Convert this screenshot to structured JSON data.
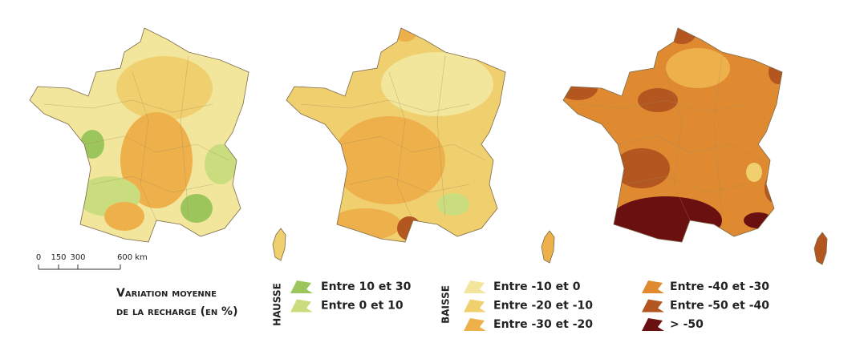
{
  "scale_bar": {
    "labels": [
      "0",
      "150",
      "300",
      "600 km"
    ]
  },
  "legend": {
    "title": [
      "Variation moyenne",
      "de la recharge (en %)"
    ],
    "groups": [
      {
        "label": "Hausse",
        "items": [
          {
            "label": "Entre 10 et 30",
            "color": "#9cc65b"
          },
          {
            "label": "Entre 0 et 10",
            "color": "#cadd7e"
          }
        ]
      },
      {
        "label": "Baisse",
        "items": [
          {
            "label": "Entre -10 et 0",
            "color": "#f2e69c"
          },
          {
            "label": "Entre -20 et -10",
            "color": "#f0cf6e"
          },
          {
            "label": "Entre -30 et -20",
            "color": "#eeb04a"
          }
        ]
      },
      {
        "items": [
          {
            "label": "Entre -40 et -30",
            "color": "#df8a30"
          },
          {
            "label": "Entre -50 et -40",
            "color": "#b4561f"
          },
          {
            "label": "> -50",
            "color": "#6b1010"
          }
        ]
      }
    ]
  }
}
